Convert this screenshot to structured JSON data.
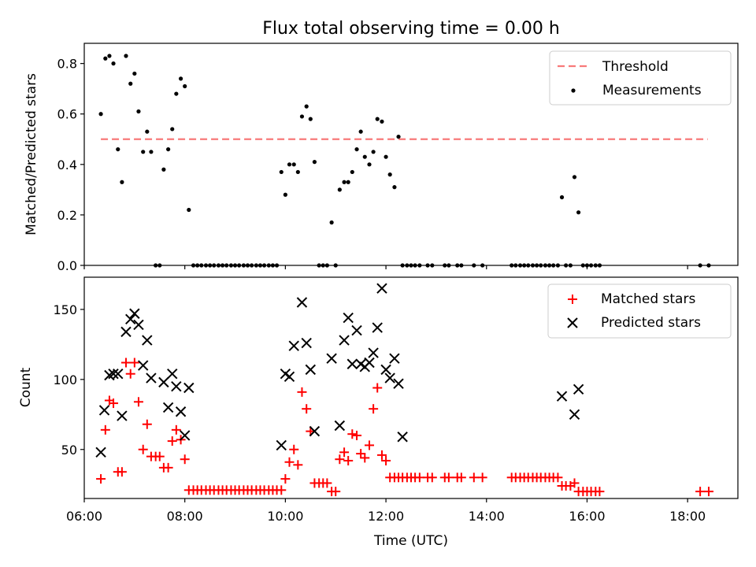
{
  "chart_data": [
    {
      "type": "scatter",
      "title": "Flux total observing time = 0.00 h",
      "xlabel": "",
      "ylabel": "Matched/Predicted stars",
      "xlim": [
        6.0,
        19.0
      ],
      "ylim": [
        0.0,
        0.88
      ],
      "yticks": [
        0.0,
        0.2,
        0.4,
        0.6,
        0.8
      ],
      "ytick_labels": [
        "0.0",
        "0.2",
        "0.4",
        "0.6",
        "0.8"
      ],
      "xtick_labels_shown": false,
      "legend_position": "top-right",
      "threshold": {
        "name": "Threshold",
        "value": 0.5,
        "x_range": [
          6.33,
          18.4
        ],
        "color": "#f87a7a",
        "style": "dashed"
      },
      "series": [
        {
          "name": "Measurements",
          "color": "#000000",
          "marker": "dot",
          "x": [
            6.33,
            6.42,
            6.5,
            6.58,
            6.67,
            6.75,
            6.83,
            6.92,
            7.0,
            7.08,
            7.17,
            7.25,
            7.33,
            7.42,
            7.5,
            7.58,
            7.67,
            7.75,
            7.83,
            7.92,
            8.0,
            8.08,
            8.17,
            8.25,
            8.33,
            8.42,
            8.5,
            8.58,
            8.67,
            8.75,
            8.83,
            8.92,
            9.0,
            9.08,
            9.17,
            9.25,
            9.33,
            9.42,
            9.5,
            9.58,
            9.67,
            9.75,
            9.83,
            9.92,
            10.0,
            10.08,
            10.17,
            10.25,
            10.33,
            10.42,
            10.5,
            10.58,
            10.67,
            10.75,
            10.83,
            10.92,
            11.0,
            11.08,
            11.17,
            11.25,
            11.33,
            11.42,
            11.5,
            11.58,
            11.67,
            11.75,
            11.83,
            11.92,
            12.0,
            12.08,
            12.17,
            12.25,
            12.33,
            12.42,
            12.5,
            12.58,
            12.67,
            12.83,
            12.92,
            13.17,
            13.25,
            13.42,
            13.5,
            13.75,
            13.92,
            14.5,
            14.58,
            14.67,
            14.75,
            14.83,
            14.92,
            15.0,
            15.08,
            15.17,
            15.25,
            15.33,
            15.42,
            15.5,
            15.58,
            15.67,
            15.75,
            15.83,
            15.92,
            16.0,
            16.08,
            16.17,
            16.25,
            18.25,
            18.42
          ],
          "y": [
            0.6,
            0.82,
            0.83,
            0.8,
            0.46,
            0.33,
            0.83,
            0.72,
            0.76,
            0.61,
            0.45,
            0.53,
            0.45,
            0.0,
            0.0,
            0.38,
            0.46,
            0.54,
            0.68,
            0.74,
            0.71,
            0.22,
            0.0,
            0.0,
            0.0,
            0.0,
            0.0,
            0.0,
            0.0,
            0.0,
            0.0,
            0.0,
            0.0,
            0.0,
            0.0,
            0.0,
            0.0,
            0.0,
            0.0,
            0.0,
            0.0,
            0.0,
            0.0,
            0.37,
            0.28,
            0.4,
            0.4,
            0.37,
            0.59,
            0.63,
            0.58,
            0.41,
            0.0,
            0.0,
            0.0,
            0.17,
            0.0,
            0.3,
            0.33,
            0.33,
            0.37,
            0.46,
            0.53,
            0.43,
            0.4,
            0.45,
            0.58,
            0.57,
            0.43,
            0.36,
            0.31,
            0.51,
            0.0,
            0.0,
            0.0,
            0.0,
            0.0,
            0.0,
            0.0,
            0.0,
            0.0,
            0.0,
            0.0,
            0.0,
            0.0,
            0.0,
            0.0,
            0.0,
            0.0,
            0.0,
            0.0,
            0.0,
            0.0,
            0.0,
            0.0,
            0.0,
            0.0,
            0.27,
            0.0,
            0.0,
            0.35,
            0.21,
            0.0,
            0.0,
            0.0,
            0.0,
            0.0,
            0.0,
            0.0
          ]
        }
      ]
    },
    {
      "type": "scatter",
      "title": "",
      "xlabel": "Time (UTC)",
      "ylabel": "Count",
      "xlim": [
        6.0,
        19.0
      ],
      "ylim": [
        15,
        173
      ],
      "xticks": [
        6,
        8,
        10,
        12,
        14,
        16,
        18
      ],
      "xtick_labels": [
        "06:00",
        "08:00",
        "10:00",
        "12:00",
        "14:00",
        "16:00",
        "18:00"
      ],
      "yticks": [
        50,
        100,
        150
      ],
      "ytick_labels": [
        "50",
        "100",
        "150"
      ],
      "legend_position": "top-right",
      "series": [
        {
          "name": "Matched stars",
          "color": "#ff0000",
          "marker": "plus",
          "x": [
            6.33,
            6.42,
            6.5,
            6.58,
            6.67,
            6.75,
            6.83,
            6.92,
            7.0,
            7.08,
            7.17,
            7.25,
            7.33,
            7.42,
            7.5,
            7.58,
            7.67,
            7.75,
            7.83,
            7.92,
            8.0,
            8.08,
            8.17,
            8.25,
            8.33,
            8.42,
            8.5,
            8.58,
            8.67,
            8.75,
            8.83,
            8.92,
            9.0,
            9.08,
            9.17,
            9.25,
            9.33,
            9.42,
            9.5,
            9.58,
            9.67,
            9.75,
            9.83,
            9.92,
            10.0,
            10.08,
            10.17,
            10.25,
            10.33,
            10.42,
            10.5,
            10.58,
            10.67,
            10.75,
            10.83,
            10.92,
            11.0,
            11.08,
            11.17,
            11.25,
            11.33,
            11.42,
            11.5,
            11.58,
            11.67,
            11.75,
            11.83,
            11.92,
            12.0,
            12.08,
            12.17,
            12.25,
            12.33,
            12.42,
            12.5,
            12.58,
            12.67,
            12.83,
            12.92,
            13.17,
            13.25,
            13.42,
            13.5,
            13.75,
            13.92,
            14.5,
            14.58,
            14.67,
            14.75,
            14.83,
            14.92,
            15.0,
            15.08,
            15.17,
            15.25,
            15.33,
            15.42,
            15.5,
            15.58,
            15.67,
            15.75,
            15.83,
            15.92,
            16.0,
            16.08,
            16.17,
            16.25,
            18.25,
            18.42
          ],
          "y": [
            29,
            64,
            85,
            83,
            34,
            34,
            112,
            104,
            112,
            84,
            50,
            68,
            45,
            45,
            45,
            37,
            37,
            56,
            64,
            57,
            43,
            21,
            21,
            21,
            21,
            21,
            21,
            21,
            21,
            21,
            21,
            21,
            21,
            21,
            21,
            21,
            21,
            21,
            21,
            21,
            21,
            21,
            21,
            21,
            29,
            41,
            50,
            39,
            91,
            79,
            63,
            26,
            26,
            26,
            26,
            20,
            20,
            43,
            48,
            42,
            61,
            60,
            47,
            44,
            53,
            79,
            94,
            46,
            42,
            30,
            30,
            30,
            30,
            30,
            30,
            30,
            30,
            30,
            30,
            30,
            30,
            30,
            30,
            30,
            30,
            30,
            30,
            30,
            30,
            30,
            30,
            30,
            30,
            30,
            30,
            30,
            30,
            24,
            24,
            24,
            26,
            20,
            20,
            20,
            20,
            20,
            20,
            20,
            20
          ]
        },
        {
          "name": "Predicted stars",
          "color": "#000000",
          "marker": "x",
          "x": [
            6.33,
            6.4,
            6.5,
            6.58,
            6.67,
            6.75,
            6.83,
            6.92,
            7.0,
            7.08,
            7.17,
            7.25,
            7.33,
            7.58,
            7.67,
            7.75,
            7.83,
            7.92,
            8.0,
            8.08,
            9.92,
            10.0,
            10.08,
            10.17,
            10.33,
            10.42,
            10.5,
            10.58,
            10.92,
            11.08,
            11.17,
            11.25,
            11.33,
            11.42,
            11.5,
            11.58,
            11.67,
            11.75,
            11.83,
            11.92,
            12.0,
            12.08,
            12.17,
            12.25,
            12.33,
            15.5,
            15.75,
            15.83
          ],
          "y": [
            48,
            78,
            103,
            104,
            104,
            74,
            134,
            143,
            147,
            139,
            110,
            128,
            101,
            98,
            80,
            104,
            95,
            77,
            60,
            94,
            53,
            104,
            102,
            124,
            155,
            126,
            107,
            63,
            115,
            67,
            128,
            144,
            111,
            135,
            111,
            109,
            112,
            119,
            137,
            165,
            107,
            101,
            115,
            97,
            59,
            88,
            75,
            93
          ]
        }
      ]
    }
  ]
}
